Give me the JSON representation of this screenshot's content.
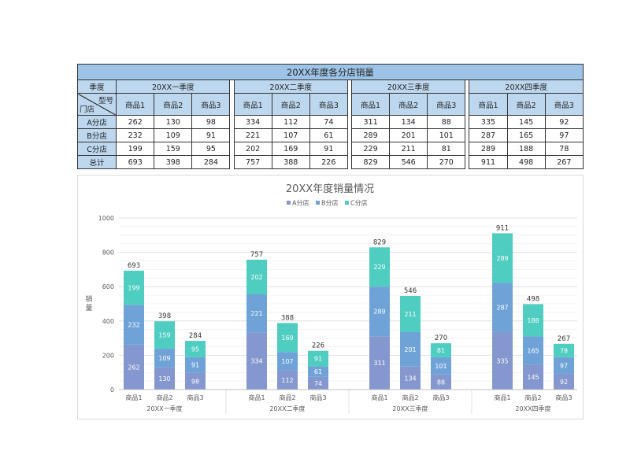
{
  "table": {
    "title": "20XX年度各分店销量",
    "corner_top": "型号",
    "corner_season": "季度",
    "corner_bottom": "门店",
    "quarters": [
      "20XX一季度",
      "20XX二季度",
      "20XX三季度",
      "20XX四季度"
    ],
    "products": [
      "商品1",
      "商品2",
      "商品3"
    ],
    "rows": [
      {
        "name": "A分店",
        "values": [
          [
            262,
            130,
            98
          ],
          [
            334,
            112,
            74
          ],
          [
            311,
            134,
            88
          ],
          [
            335,
            145,
            92
          ]
        ]
      },
      {
        "name": "B分店",
        "values": [
          [
            232,
            109,
            91
          ],
          [
            221,
            107,
            61
          ],
          [
            289,
            201,
            101
          ],
          [
            287,
            165,
            97
          ]
        ]
      },
      {
        "name": "C分店",
        "values": [
          [
            199,
            159,
            95
          ],
          [
            202,
            169,
            91
          ],
          [
            229,
            211,
            81
          ],
          [
            289,
            188,
            78
          ]
        ]
      },
      {
        "name": "总计",
        "values": [
          [
            693,
            398,
            284
          ],
          [
            757,
            388,
            226
          ],
          [
            829,
            546,
            270
          ],
          [
            911,
            498,
            267
          ]
        ]
      }
    ]
  },
  "chart_data": {
    "type": "bar",
    "stacked": true,
    "title": "20XX年度销量情况",
    "ylabel": "销量",
    "xlabel": "",
    "ylim": [
      0,
      1000
    ],
    "yticks": [
      0,
      200,
      400,
      600,
      800,
      1000
    ],
    "legend_position": "top-center",
    "groups": [
      "20XX一季度",
      "20XX二季度",
      "20XX三季度",
      "20XX四季度"
    ],
    "categories": [
      "商品1",
      "商品2",
      "商品3"
    ],
    "series": [
      {
        "name": "A分店",
        "color": "#8497cf",
        "values": [
          [
            262,
            130,
            98
          ],
          [
            334,
            112,
            74
          ],
          [
            311,
            134,
            88
          ],
          [
            335,
            145,
            92
          ]
        ]
      },
      {
        "name": "B分店",
        "color": "#6fa3d8",
        "values": [
          [
            232,
            109,
            91
          ],
          [
            221,
            107,
            61
          ],
          [
            289,
            201,
            101
          ],
          [
            287,
            165,
            97
          ]
        ]
      },
      {
        "name": "C分店",
        "color": "#4ecdc0",
        "values": [
          [
            199,
            159,
            95
          ],
          [
            202,
            169,
            91
          ],
          [
            229,
            211,
            81
          ],
          [
            289,
            188,
            78
          ]
        ]
      }
    ],
    "totals": [
      [
        693,
        398,
        284
      ],
      [
        757,
        388,
        226
      ],
      [
        829,
        546,
        270
      ],
      [
        911,
        498,
        267
      ]
    ]
  }
}
